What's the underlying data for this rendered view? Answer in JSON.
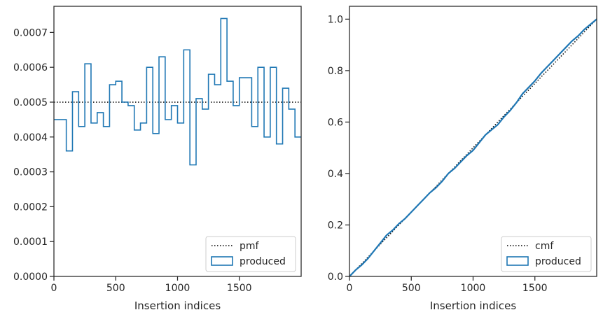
{
  "chart_data": [
    {
      "type": "histogram",
      "xlabel": "Insertion indices",
      "ylabel": "",
      "xlim": [
        0,
        2000
      ],
      "ylim": [
        0,
        0.000775
      ],
      "xticks": [
        0,
        500,
        1000,
        1500
      ],
      "xtick_labels": [
        "0",
        "500",
        "1000",
        "1500"
      ],
      "yticks": [
        0,
        0.0001,
        0.0002,
        0.0003,
        0.0004,
        0.0005,
        0.0006,
        0.0007
      ],
      "ytick_labels": [
        "0.0000",
        "0.0001",
        "0.0002",
        "0.0003",
        "0.0004",
        "0.0005",
        "0.0006",
        "0.0007"
      ],
      "grid": false,
      "legend_position": "lower right",
      "bin_edges": [
        0,
        100,
        150,
        200,
        250,
        300,
        350,
        400,
        450,
        500,
        550,
        600,
        650,
        700,
        750,
        800,
        850,
        900,
        950,
        1000,
        1050,
        1100,
        1150,
        1200,
        1250,
        1300,
        1350,
        1400,
        1450,
        1500,
        1600,
        1650,
        1700,
        1750,
        1800,
        1850,
        1900,
        1950,
        2000
      ],
      "series": [
        {
          "name": "pmf",
          "style": "dotted",
          "color": "#000000",
          "x": [
            0,
            2000
          ],
          "y": [
            0.0005,
            0.0005
          ]
        },
        {
          "name": "produced",
          "style": "step",
          "color": "#1f77b4",
          "values": [
            0.00045,
            0.00036,
            0.00053,
            0.00043,
            0.00061,
            0.00044,
            0.00047,
            0.00043,
            0.00055,
            0.00056,
            0.0005,
            0.00049,
            0.00042,
            0.00044,
            0.0006,
            0.00041,
            0.00063,
            0.00045,
            0.00049,
            0.00044,
            0.00065,
            0.00032,
            0.00051,
            0.00048,
            0.00058,
            0.00055,
            0.00074,
            0.00056,
            0.00049,
            0.00057,
            0.00043,
            0.0006,
            0.0004,
            0.0006,
            0.00038,
            0.00054,
            0.00048,
            0.0004
          ]
        }
      ]
    },
    {
      "type": "line",
      "xlabel": "Insertion indices",
      "ylabel": "",
      "xlim": [
        0,
        2000
      ],
      "ylim": [
        0,
        1.05
      ],
      "xticks": [
        0,
        500,
        1000,
        1500
      ],
      "xtick_labels": [
        "0",
        "500",
        "1000",
        "1500"
      ],
      "yticks": [
        0,
        0.2,
        0.4,
        0.6,
        0.8,
        1.0
      ],
      "ytick_labels": [
        "0.0",
        "0.2",
        "0.4",
        "0.6",
        "0.8",
        "1.0"
      ],
      "grid": false,
      "legend_position": "lower right",
      "series": [
        {
          "name": "cmf",
          "style": "dotted",
          "color": "#000000",
          "x": [
            0,
            2000
          ],
          "y": [
            0,
            1
          ]
        },
        {
          "name": "produced",
          "style": "line",
          "color": "#1f77b4",
          "x": [
            0,
            50,
            100,
            150,
            200,
            250,
            300,
            350,
            400,
            450,
            500,
            550,
            600,
            650,
            700,
            750,
            800,
            850,
            900,
            950,
            1000,
            1050,
            1100,
            1150,
            1200,
            1250,
            1300,
            1350,
            1400,
            1450,
            1500,
            1550,
            1600,
            1650,
            1700,
            1750,
            1800,
            1850,
            1900,
            1950,
            2000
          ],
          "y": [
            0,
            0.025,
            0.045,
            0.07,
            0.1,
            0.13,
            0.16,
            0.18,
            0.205,
            0.225,
            0.25,
            0.275,
            0.3,
            0.325,
            0.345,
            0.37,
            0.4,
            0.42,
            0.445,
            0.47,
            0.49,
            0.52,
            0.55,
            0.57,
            0.59,
            0.62,
            0.645,
            0.675,
            0.71,
            0.735,
            0.76,
            0.79,
            0.815,
            0.84,
            0.865,
            0.89,
            0.915,
            0.935,
            0.96,
            0.98,
            1.0
          ]
        }
      ]
    }
  ]
}
